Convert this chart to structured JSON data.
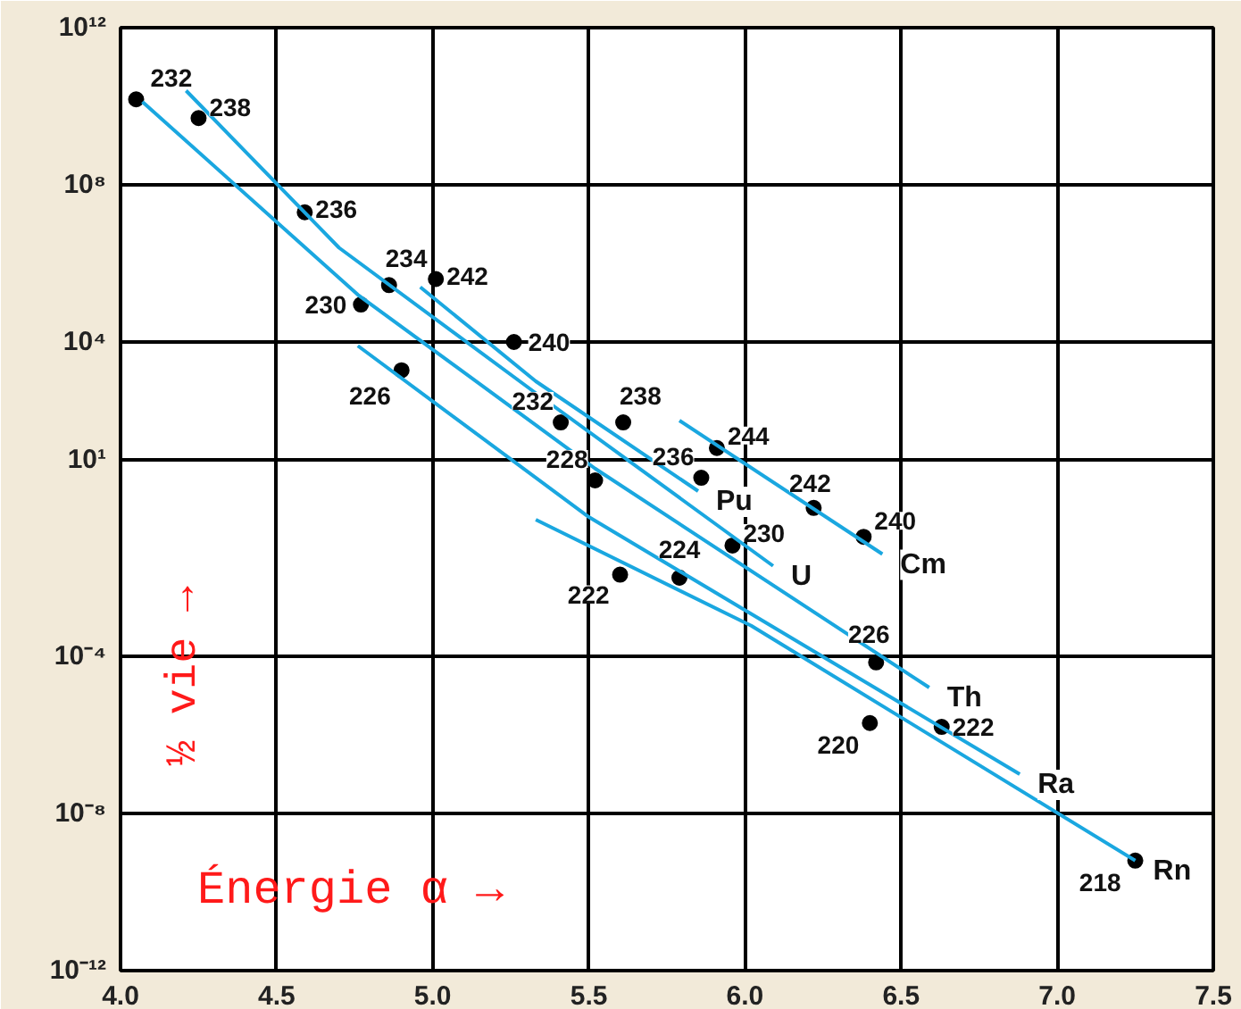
{
  "chart_data": {
    "type": "scatter",
    "xlabel": "Énergie α →",
    "ylabel": "½ vie →",
    "xlim": [
      4.0,
      7.5
    ],
    "xticks": [
      {
        "value": 4,
        "label": "4.0"
      },
      {
        "value": 4.5,
        "label": "4.5"
      },
      {
        "value": 5,
        "label": "5.0"
      },
      {
        "value": 5.5,
        "label": "5.5"
      },
      {
        "value": 6,
        "label": "6.0"
      },
      {
        "value": 6.5,
        "label": "6.5"
      },
      {
        "value": 7,
        "label": "7.0"
      },
      {
        "value": 7.5,
        "label": "7.5"
      }
    ],
    "ylim": [
      1e-12,
      1000000000000.0
    ],
    "yticks": [
      {
        "value": 1e-12,
        "label": "10⁻¹²"
      },
      {
        "value": 1e-08,
        "label": "10⁻⁸"
      },
      {
        "value": 0.0001,
        "label": "10⁻⁴"
      },
      {
        "value": 10,
        "label": "10¹"
      },
      {
        "value": 10000.0,
        "label": "10⁴"
      },
      {
        "value": 100000000.0,
        "label": "10⁸"
      },
      {
        "value": 1000000000000.0,
        "label": "10¹²"
      }
    ],
    "log": "y",
    "grid": true,
    "series": [
      {
        "color": "#000000",
        "marker": "circle",
        "x": [
          4.05,
          4.25,
          4.59,
          4.86,
          4.77,
          5.01,
          5.26,
          4.9,
          5.41,
          5.61,
          5.52,
          5.86,
          5.91,
          6.22,
          6.38,
          5.96,
          5.6,
          5.79,
          6.42,
          6.4,
          6.63,
          7.25
        ],
        "values": [
          15000000000.0,
          5000000000.0,
          20000000.0,
          280000.0,
          90000.0,
          400000.0,
          10000.0,
          1900.0,
          90,
          90,
          3,
          3.5,
          20,
          0.6,
          0.11,
          0.066,
          0.012,
          0.01,
          7e-05,
          2e-06,
          1.6e-06,
          6.3e-10
        ]
      },
      {
        "type": "line",
        "name": "Th",
        "color": "#1aa7e0",
        "x": [
          4.07,
          4.76,
          5.52,
          6.59
        ],
        "values": [
          13000000000.0,
          160000.0,
          6,
          1.6e-05
        ]
      },
      {
        "type": "line",
        "name": "U",
        "color": "#1aa7e0",
        "x": [
          4.21,
          4.7,
          5.33,
          6.09
        ],
        "values": [
          25000000000.0,
          2500000.0,
          500,
          0.02
        ]
      },
      {
        "type": "line",
        "name": "Pu",
        "color": "#1aa7e0",
        "x": [
          4.96,
          5.33,
          5.85
        ],
        "values": [
          250000.0,
          1000,
          1.6
        ]
      },
      {
        "type": "line",
        "name": "Cm",
        "color": "#1aa7e0",
        "x": [
          5.79,
          6.44
        ],
        "values": [
          100,
          0.04
        ]
      },
      {
        "type": "line",
        "name": "Ra",
        "color": "#1aa7e0",
        "x": [
          4.76,
          5.5,
          6.88
        ],
        "values": [
          8000,
          0.35,
          1e-07
        ]
      },
      {
        "type": "line",
        "name": "Rn",
        "color": "#1aa7e0",
        "x": [
          5.33,
          6.02,
          7.25
        ],
        "values": [
          0.3,
          0.0006,
          6.3e-10
        ]
      }
    ],
    "annotations": [
      {
        "text": "232",
        "x": 4.05,
        "y": 15000000000.0
      },
      {
        "text": "238",
        "x": 4.25,
        "y": 5000000000.0
      },
      {
        "text": "236",
        "x": 4.59,
        "y": 20000000.0
      },
      {
        "text": "234",
        "x": 4.86,
        "y": 280000.0
      },
      {
        "text": "230",
        "x": 4.77,
        "y": 90000.0
      },
      {
        "text": "242",
        "x": 5.01,
        "y": 400000.0
      },
      {
        "text": "240",
        "x": 5.26,
        "y": 10000.0
      },
      {
        "text": "226",
        "x": 4.9,
        "y": 1900.0
      },
      {
        "text": "232",
        "x": 5.41,
        "y": 90
      },
      {
        "text": "238",
        "x": 5.61,
        "y": 90
      },
      {
        "text": "228",
        "x": 5.52,
        "y": 3
      },
      {
        "text": "236",
        "x": 5.86,
        "y": 3.5
      },
      {
        "text": "244",
        "x": 5.91,
        "y": 20
      },
      {
        "text": "242",
        "x": 6.22,
        "y": 0.6
      },
      {
        "text": "240",
        "x": 6.38,
        "y": 0.11
      },
      {
        "text": "230",
        "x": 5.96,
        "y": 0.066
      },
      {
        "text": "222",
        "x": 5.6,
        "y": 0.012
      },
      {
        "text": "224",
        "x": 5.79,
        "y": 0.01
      },
      {
        "text": "226",
        "x": 6.42,
        "y": 7e-05
      },
      {
        "text": "220",
        "x": 6.4,
        "y": 2e-06
      },
      {
        "text": "222",
        "x": 6.63,
        "y": 1.6e-06
      },
      {
        "text": "218",
        "x": 7.25,
        "y": 6.3e-10
      }
    ]
  }
}
